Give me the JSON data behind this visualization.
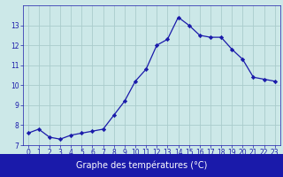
{
  "hours": [
    0,
    1,
    2,
    3,
    4,
    5,
    6,
    7,
    8,
    9,
    10,
    11,
    12,
    13,
    14,
    15,
    16,
    17,
    18,
    19,
    20,
    21,
    22,
    23
  ],
  "temps": [
    7.6,
    7.8,
    7.4,
    7.3,
    7.5,
    7.6,
    7.7,
    7.8,
    8.5,
    9.2,
    10.2,
    10.8,
    12.0,
    12.3,
    13.4,
    13.0,
    12.5,
    12.4,
    12.4,
    11.8,
    11.3,
    10.4,
    10.3,
    10.2
  ],
  "line_color": "#1a1aaa",
  "marker": "D",
  "marker_size": 2.2,
  "bg_color": "#cce8e8",
  "grid_color": "#aacccc",
  "xlabel": "Graphe des températures (°C)",
  "xlabel_color": "#ffffff",
  "xlabel_bg": "#1a1aaa",
  "ylim": [
    7,
    14
  ],
  "xlim": [
    -0.5,
    23.5
  ],
  "yticks": [
    7,
    8,
    9,
    10,
    11,
    12,
    13
  ],
  "xticks": [
    0,
    1,
    2,
    3,
    4,
    5,
    6,
    7,
    8,
    9,
    10,
    11,
    12,
    13,
    14,
    15,
    16,
    17,
    18,
    19,
    20,
    21,
    22,
    23
  ],
  "tick_color": "#1a1aaa",
  "tick_fontsize": 5.5,
  "xlabel_fontsize": 7.0,
  "linewidth": 0.9
}
